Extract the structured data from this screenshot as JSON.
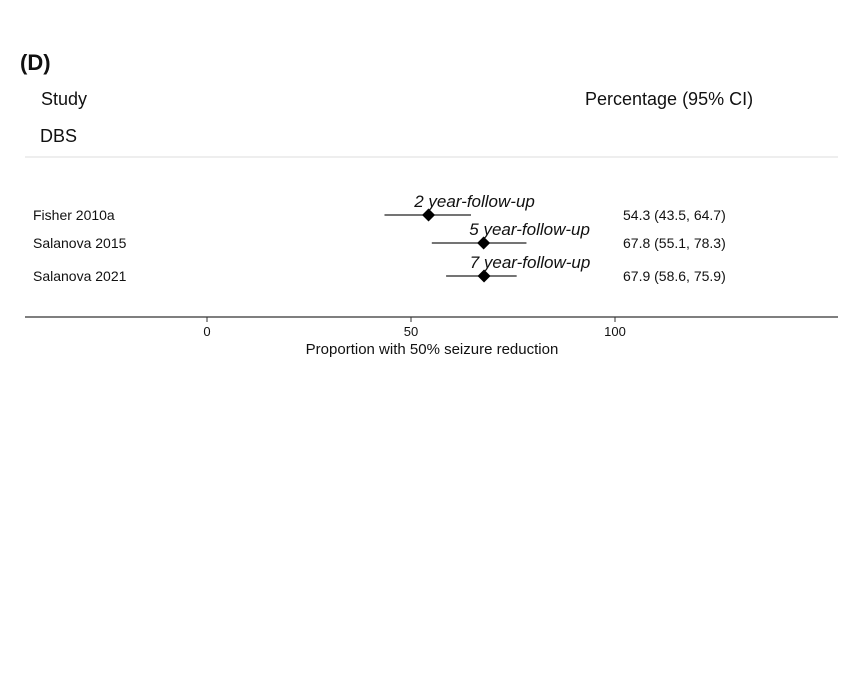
{
  "panel_label": "(D)",
  "header": {
    "study": "Study",
    "percentage": "Percentage (95% CI)"
  },
  "group_label": "DBS",
  "chart_data": {
    "type": "forest",
    "xlabel": "Proportion with 50% seizure reduction",
    "xticks": [
      0,
      50,
      100
    ],
    "studies": [
      {
        "name": "Fisher 2010a",
        "estimate": 54.3,
        "lower": 43.5,
        "upper": 64.7,
        "ci_text": "54.3 (43.5, 64.7)",
        "annotation": "2 year-follow-up"
      },
      {
        "name": "Salanova 2015",
        "estimate": 67.8,
        "lower": 55.1,
        "upper": 78.3,
        "ci_text": "67.8 (55.1, 78.3)",
        "annotation": "5 year-follow-up"
      },
      {
        "name": "Salanova 2021",
        "estimate": 67.9,
        "lower": 58.6,
        "upper": 75.9,
        "ci_text": "67.9 (58.6, 75.9)",
        "annotation": "7 year-follow-up"
      }
    ]
  }
}
